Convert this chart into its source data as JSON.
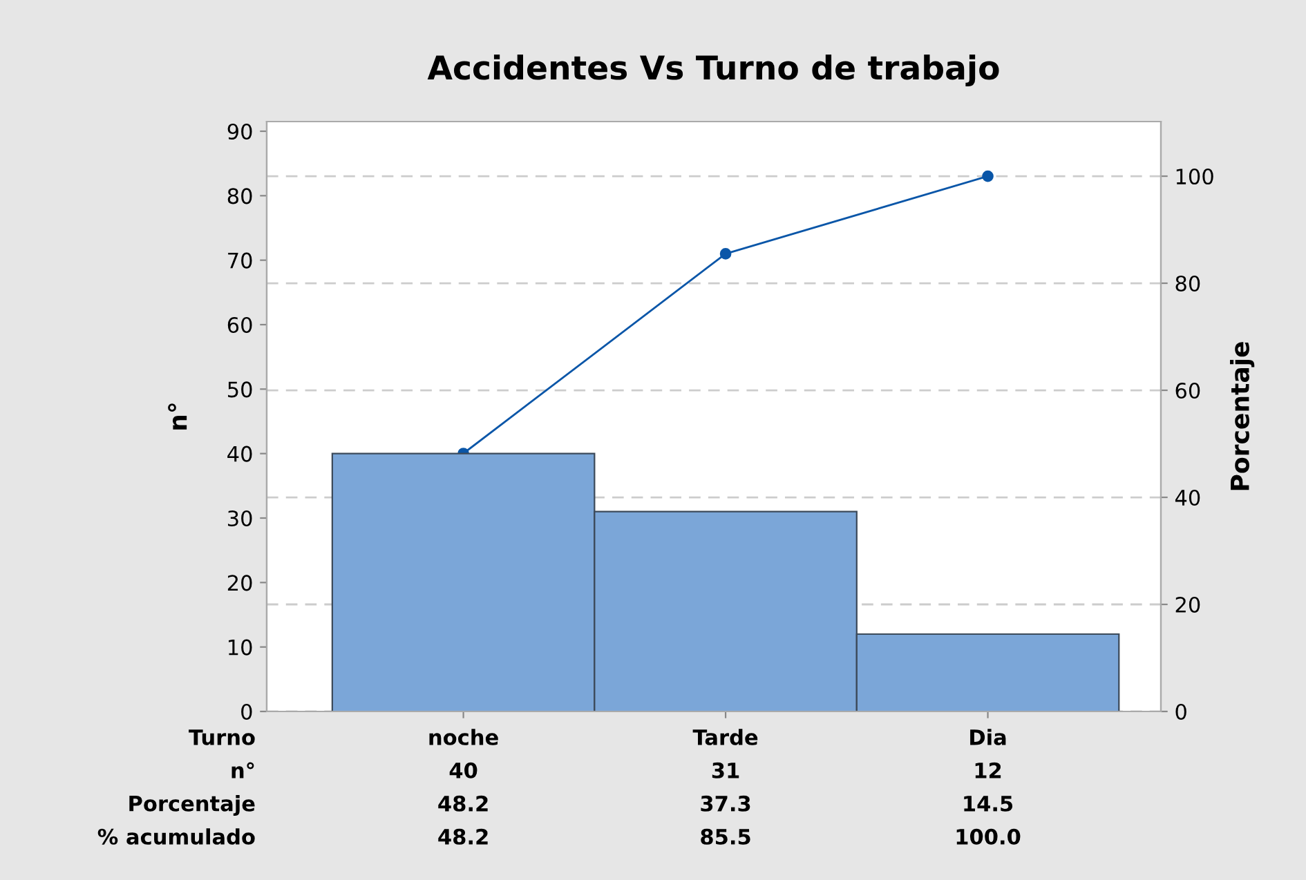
{
  "chart_data": {
    "type": "bar",
    "title": "Accidentes Vs Turno de trabajo",
    "xlabel": "Turno",
    "ylabel": "n°",
    "y2label": "Porcentaje",
    "categories": [
      "noche",
      "Tarde",
      "Dia"
    ],
    "series": [
      {
        "color": "#7ba6d8",
        "values": [
          40,
          31,
          12
        ],
        "value_labels": [
          "40",
          "31",
          "12"
        ]
      },
      {
        "type": "line",
        "axis": "y2",
        "color": "#0a56a8",
        "values": [
          48.2,
          85.5,
          100.0
        ],
        "value_labels": [
          "48.2",
          "85.5",
          "100.0"
        ]
      }
    ],
    "annotations": [
      "n°",
      "Porcentaje",
      "48.2",
      "37.3",
      "14.5",
      "% acumulado"
    ],
    "ylim": [
      0,
      91.5
    ],
    "yticks": [
      0,
      10,
      20,
      30,
      40,
      50,
      60,
      70,
      80,
      90
    ],
    "y2lim": [
      0,
      110.2
    ],
    "y2ticks": [
      0,
      20,
      40,
      60,
      80,
      100
    ],
    "grid": true,
    "marker": "circle",
    "line_style": "solid",
    "legend": false
  }
}
